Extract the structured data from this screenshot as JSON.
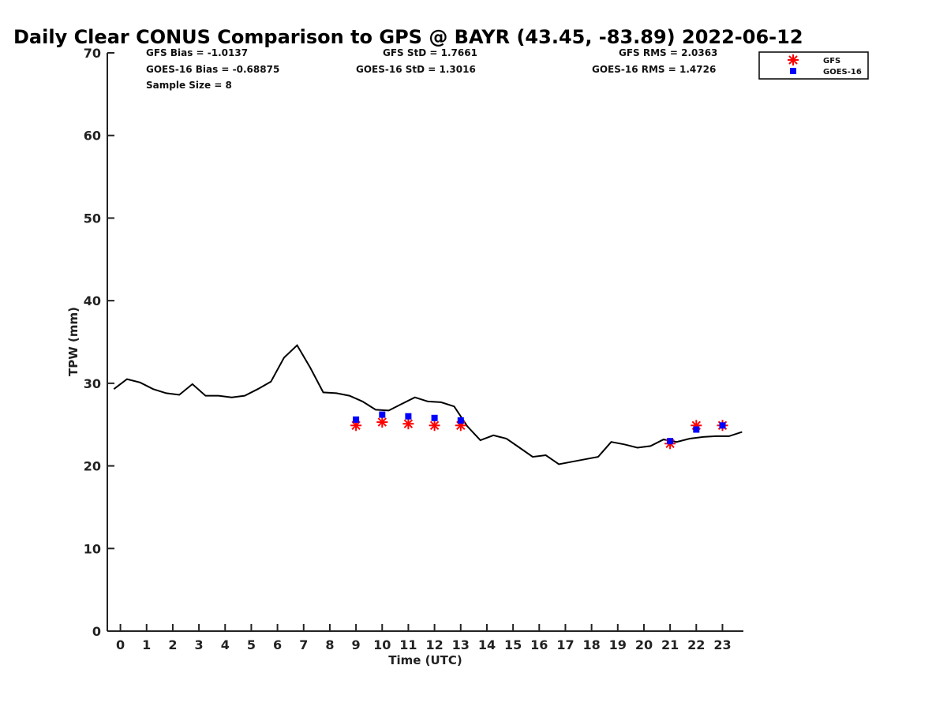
{
  "chart_data": {
    "type": "line",
    "title": "Daily Clear CONUS Comparison to GPS @ BAYR (43.45, -83.89) 2022-06-12",
    "xlabel": "Time (UTC)",
    "ylabel": "TPW (mm)",
    "xlim": [
      -0.5,
      23.8
    ],
    "ylim": [
      0,
      70
    ],
    "x_ticks": [
      "0",
      "1",
      "2",
      "3",
      "4",
      "5",
      "6",
      "7",
      "8",
      "9",
      "10",
      "11",
      "12",
      "13",
      "14",
      "15",
      "16",
      "17",
      "18",
      "19",
      "20",
      "21",
      "22",
      "23"
    ],
    "y_ticks": [
      "0",
      "10",
      "20",
      "30",
      "40",
      "50",
      "60",
      "70"
    ],
    "grid": false,
    "legend_position": "top-right",
    "stats": {
      "gfs_bias": "GFS Bias = -1.0137",
      "goes_bias": "GOES-16 Bias = -0.68875",
      "sample_size": "Sample Size = 8",
      "gfs_std": "GFS StD = 1.7661",
      "goes_std": "GOES-16 StD = 1.3016",
      "gfs_rms": "GFS RMS = 2.0363",
      "goes_rms": "GOES-16 RMS = 1.4726"
    },
    "series": [
      {
        "kind": "line",
        "color": "#000000",
        "x": [
          -0.25,
          0.25,
          0.75,
          1.25,
          1.75,
          2.25,
          2.75,
          3.25,
          3.75,
          4.25,
          4.75,
          5.25,
          5.75,
          6.25,
          6.75,
          7.25,
          7.75,
          8.25,
          8.75,
          9.25,
          9.75,
          10.25,
          10.75,
          11.25,
          11.75,
          12.25,
          12.75,
          13.25,
          13.75,
          14.25,
          14.75,
          15.25,
          15.75,
          16.25,
          16.75,
          17.25,
          17.75,
          18.25,
          18.75,
          19.25,
          19.75,
          20.25,
          20.75,
          21.25,
          21.75,
          22.25,
          22.75,
          23.25,
          23.75
        ],
        "values": [
          29.3,
          30.5,
          30.1,
          29.3,
          28.8,
          28.6,
          29.9,
          28.5,
          28.5,
          28.3,
          28.5,
          29.3,
          30.2,
          33.1,
          34.6,
          31.9,
          28.9,
          28.8,
          28.5,
          27.8,
          26.8,
          26.7,
          27.5,
          28.3,
          27.8,
          27.7,
          27.2,
          24.8,
          23.1,
          23.7,
          23.3,
          22.2,
          21.1,
          21.3,
          20.2,
          20.5,
          20.8,
          21.1,
          22.9,
          22.6,
          22.2,
          22.4,
          23.2,
          22.9,
          23.3,
          23.5,
          23.6,
          23.6,
          24.1
        ]
      },
      {
        "name": "GFS",
        "kind": "scatter",
        "marker": "asterisk",
        "color": "#ff0000",
        "x": [
          9,
          10,
          11,
          12,
          13,
          21,
          22,
          23
        ],
        "values": [
          24.9,
          25.3,
          25.1,
          24.9,
          24.9,
          22.7,
          24.9,
          24.9
        ]
      },
      {
        "name": "GOES-16",
        "kind": "scatter",
        "marker": "square",
        "color": "#0000ff",
        "x": [
          9,
          10,
          11,
          12,
          13,
          21,
          22,
          23
        ],
        "values": [
          25.6,
          26.2,
          26.0,
          25.8,
          25.5,
          23.0,
          24.4,
          24.9
        ]
      }
    ]
  }
}
